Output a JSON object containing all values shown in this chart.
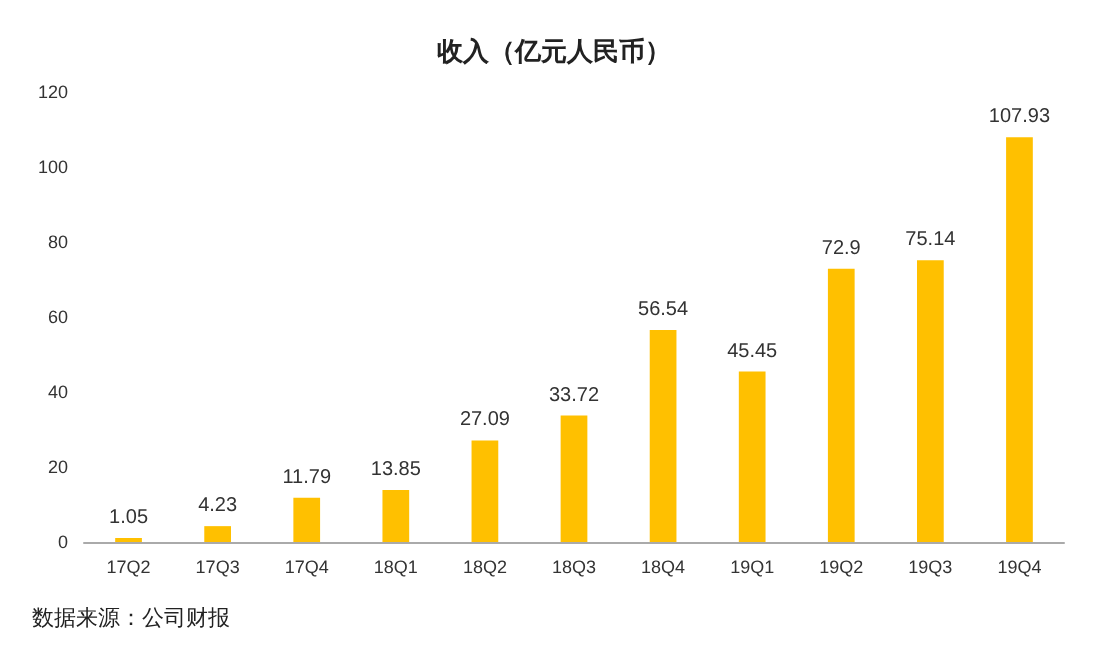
{
  "chart_data": {
    "type": "bar",
    "title": "收入（亿元人民币）",
    "categories": [
      "17Q2",
      "17Q3",
      "17Q4",
      "18Q1",
      "18Q2",
      "18Q3",
      "18Q4",
      "19Q1",
      "19Q2",
      "19Q3",
      "19Q4"
    ],
    "values": [
      1.05,
      4.23,
      11.79,
      13.85,
      27.09,
      33.72,
      56.54,
      45.45,
      72.9,
      75.14,
      107.93
    ],
    "color": "#ffc000",
    "ylim": [
      0,
      120
    ],
    "yticks": [
      0,
      20,
      40,
      60,
      80,
      100,
      120
    ],
    "data_labels": true,
    "annotations": [
      "数据来源：公司财报"
    ]
  }
}
